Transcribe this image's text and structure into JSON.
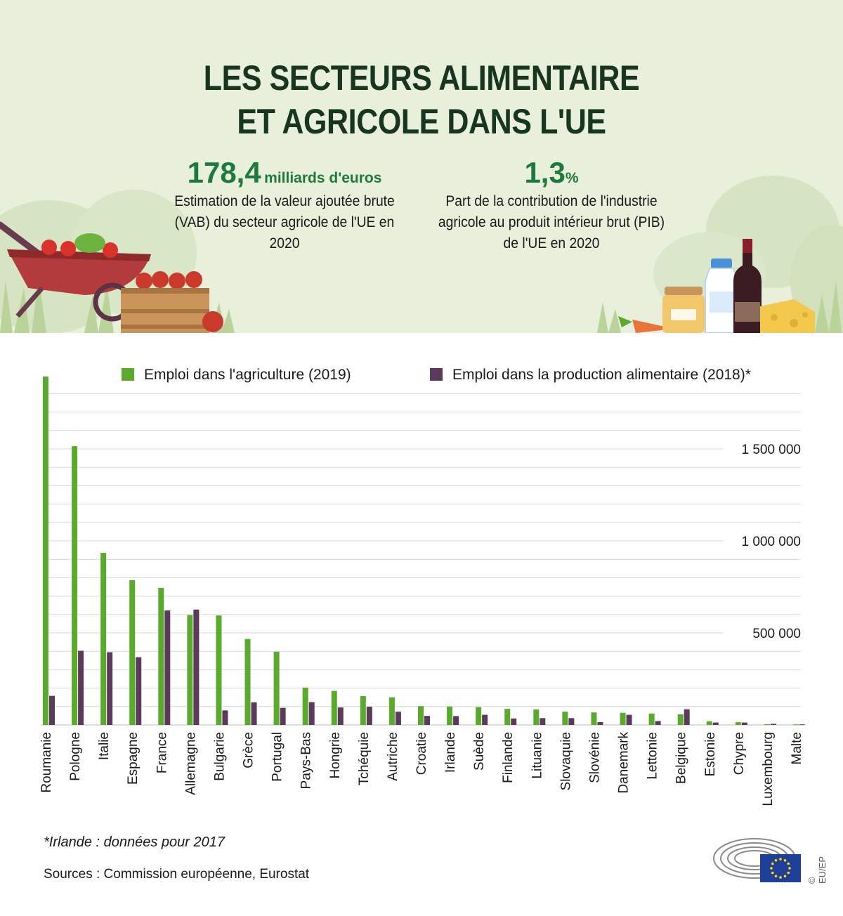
{
  "title_lines": [
    "LES SECTEURS ALIMENTAIRE",
    "ET AGRICOLE DANS L'UE"
  ],
  "stats": [
    {
      "value": "178,4",
      "unit": "milliards d'euros",
      "description": "Estimation de la valeur ajoutée brute (VAB) du secteur agricole de l'UE en 2020"
    },
    {
      "value": "1,3",
      "unit": "%",
      "description": "Part de la contribution de l'industrie agricole au produit intérieur brut (PIB) de l'UE en 2020"
    }
  ],
  "colors": {
    "agriculture": "#5aaa2e",
    "food": "#5b3a5c",
    "header_bg": "#e8efdb",
    "title": "#17351f",
    "stat": "#1e7a3c",
    "grid": "#d9d9d9"
  },
  "chart_data": {
    "type": "bar",
    "categories": [
      "Roumanie",
      "Pologne",
      "Italie",
      "Espagne",
      "France",
      "Allemagne",
      "Bulgarie",
      "Grèce",
      "Portugal",
      "Pays-Bas",
      "Hongrie",
      "Tchéquie",
      "Autriche",
      "Croatie",
      "Irlande",
      "Suède",
      "Finlande",
      "Lituanie",
      "Slovaquie",
      "Slovénie",
      "Danemark",
      "Lettonie",
      "Belgique",
      "Estonie",
      "Chypre",
      "Luxembourg",
      "Malte"
    ],
    "series": [
      {
        "name": "Emploi dans l'agriculture (2019)",
        "values": [
          1893000,
          1515000,
          935000,
          787000,
          745000,
          597000,
          595000,
          467000,
          398000,
          203000,
          185000,
          157000,
          150000,
          102000,
          100000,
          97000,
          87000,
          84000,
          72000,
          68000,
          66000,
          62000,
          58000,
          20000,
          15000,
          4000,
          3000
        ]
      },
      {
        "name": "Emploi dans la production alimentaire (2018)*",
        "values": [
          158000,
          403000,
          395000,
          368000,
          622000,
          627000,
          79000,
          123000,
          93000,
          124000,
          95000,
          99000,
          72000,
          49000,
          48000,
          55000,
          35000,
          37000,
          37000,
          15000,
          55000,
          21000,
          85000,
          13000,
          13000,
          6000,
          3000
        ]
      }
    ],
    "y_ticks": [
      {
        "value": 500000,
        "label": "500 000"
      },
      {
        "value": 1000000,
        "label": "1 000 000"
      },
      {
        "value": 1500000,
        "label": "1 500 000"
      }
    ],
    "ylim": [
      0,
      1900000
    ],
    "grid": true,
    "legend": "top"
  },
  "footnote": "*Irlande : données pour 2017",
  "sources": "Sources : Commission européenne, Eurostat",
  "credit": "© EU/EP",
  "icons": [
    "wheelbarrow-icon",
    "crate-icon",
    "honey-jar-icon",
    "milk-bottle-icon",
    "wine-bottle-icon",
    "cheese-icon",
    "carrot-icon",
    "eu-flag-icon",
    "parliament-hemicycle-icon"
  ]
}
